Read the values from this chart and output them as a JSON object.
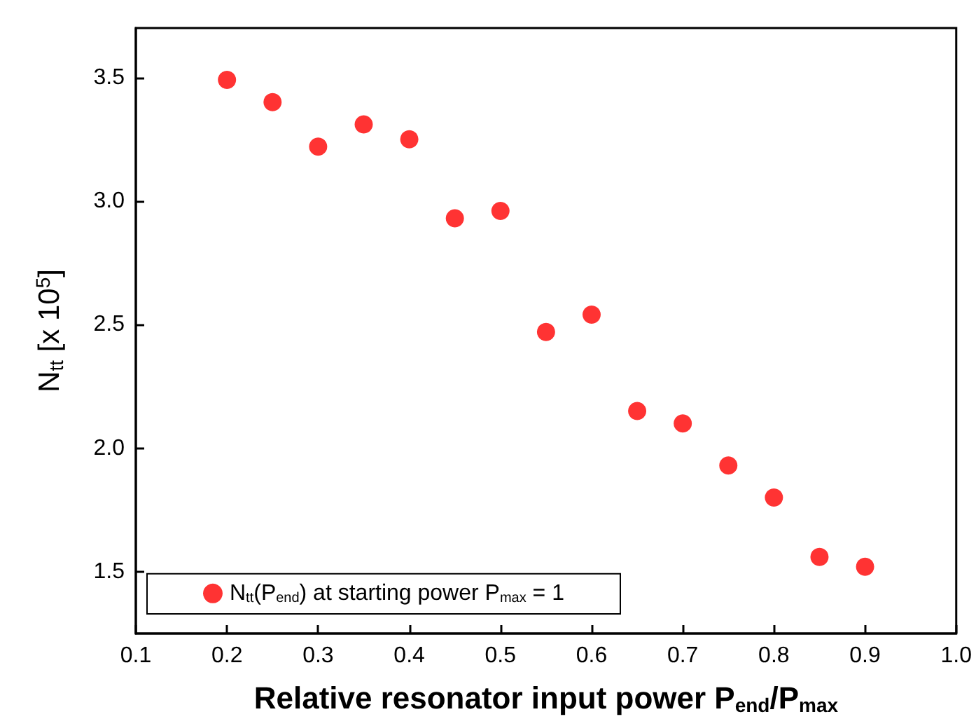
{
  "chart_data": {
    "type": "scatter",
    "xlabel": "Relative resonator input power P$_{end}$/P$_{max}$",
    "ylabel": "N$_{tt}$ [x 10$^{5}$]",
    "x": [
      0.2,
      0.25,
      0.3,
      0.35,
      0.4,
      0.45,
      0.5,
      0.55,
      0.6,
      0.65,
      0.7,
      0.75,
      0.8,
      0.85,
      0.9
    ],
    "series": [
      {
        "name": "N$_{tt}$(P$_{end}$) at starting power P$_{max}$ = 1",
        "color": "#ff0000",
        "values": [
          3.49,
          3.4,
          3.22,
          3.31,
          3.25,
          2.93,
          2.96,
          2.47,
          2.54,
          2.15,
          2.1,
          1.93,
          1.8,
          1.56,
          1.52
        ]
      }
    ],
    "xlim": [
      0.1,
      1.0
    ],
    "xticks": [
      0.1,
      0.2,
      0.3,
      0.4,
      0.5,
      0.6,
      0.7,
      0.8,
      0.9,
      {
        "value": 1,
        "label": "1.0"
      }
    ],
    "ylim": [
      1.25,
      3.7
    ],
    "yticks": [
      1.5,
      {
        "value": 2,
        "label": "2.0"
      },
      2.5,
      {
        "value": 3,
        "label": "3.0"
      },
      3.5
    ],
    "grid": false,
    "legend": "bottom left",
    "marker": "circle"
  }
}
